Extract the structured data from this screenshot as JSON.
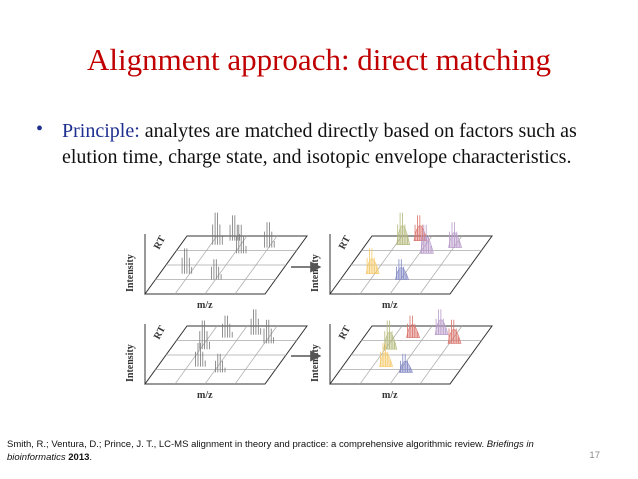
{
  "slide": {
    "title": "Alignment approach: direct matching",
    "bullet": {
      "symbol": "•",
      "keyword": "Principle:",
      "text": " analytes are matched directly based on factors such as elution time, charge state, and isotopic envelope characteristics."
    },
    "figure": {
      "axis_intensity": "Intensity",
      "axis_rt": "RT",
      "axis_mz": "m/z",
      "panels": [
        {
          "position": "top-left",
          "state": "unaligned",
          "color": "#8c8c8c"
        },
        {
          "position": "top-right",
          "state": "matched",
          "colors": [
            "#b4b87a",
            "#f5c96a",
            "#d9726a",
            "#b79ac9",
            "#7f86c4"
          ]
        },
        {
          "position": "bottom-left",
          "state": "unaligned",
          "color": "#8c8c8c"
        },
        {
          "position": "bottom-right",
          "state": "matched",
          "colors": [
            "#b4b87a",
            "#f5c96a",
            "#d9726a",
            "#b79ac9",
            "#7f86c4"
          ]
        }
      ]
    },
    "citation": {
      "authors": "Smith, R.; Ventura, D.; Prince, J. T., LC-MS alignment in theory and practice: a comprehensive algorithmic review. ",
      "journal_part1": "Briefings in",
      "journal_part2": "bioinformatics",
      "year": " 2013",
      "end": "."
    },
    "page_number": "17"
  }
}
